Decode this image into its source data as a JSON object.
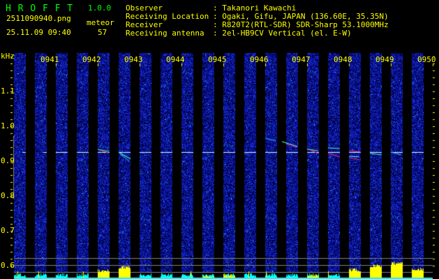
{
  "app": {
    "name": "H R O F F T",
    "version": "1.0.0"
  },
  "file": {
    "name": "2511090940.png",
    "datetime": "25.11.09 09:40"
  },
  "meteor": {
    "label": "meteor",
    "count": "57"
  },
  "info": {
    "labels": [
      "Observer",
      "Receiving Location",
      "Receiver",
      "Receiving antenna"
    ],
    "values": [
      ": Takanori Kawachi",
      ": Ogaki, Gifu, JAPAN (136.60E, 35.35N)",
      ": R820T2(RTL-SDR) SDR-Sharp 53.1000MHz",
      ": 2el-HB9CV Vertical (el. E-W)"
    ]
  },
  "axis": {
    "unit": "kHz",
    "y_labels": [
      "1.1",
      "1.0",
      "0.9",
      "0.8",
      "0.7",
      "0.6"
    ],
    "time_labels": [
      "0941",
      "0942",
      "0943",
      "0944",
      "0945",
      "0946",
      "0947",
      "0948",
      "0949",
      "0950"
    ]
  },
  "colors": {
    "text": "#ffff00",
    "title": "#00ff00",
    "noise": "#1020c0",
    "carrier": "#e0ffff",
    "bar_low": "#00ffff",
    "bar_high": "#ffff00"
  }
}
